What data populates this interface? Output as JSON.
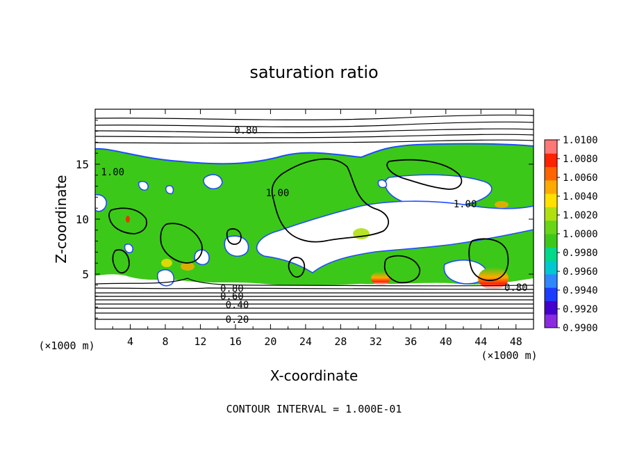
{
  "chart_data": {
    "type": "heatmap",
    "title": "saturation ratio",
    "xlabel": "X-coordinate",
    "ylabel": "Z-coordinate",
    "x_unit": "(×1000 m)",
    "z_unit": "(×1000 m)",
    "xlim": [
      0,
      50
    ],
    "ylim": [
      0,
      20
    ],
    "x_ticks": [
      4,
      8,
      12,
      16,
      20,
      24,
      28,
      32,
      36,
      40,
      44,
      48
    ],
    "y_ticks": [
      5,
      10,
      15
    ],
    "footer": "CONTOUR INTERVAL = 1.000E-01",
    "contour_labels": [
      {
        "text": "0.80",
        "x": 17.2,
        "z": 18.1
      },
      {
        "text": "1.00",
        "x": 2.0,
        "z": 14.3
      },
      {
        "text": "1.00",
        "x": 20.8,
        "z": 12.4
      },
      {
        "text": "1.00",
        "x": 42.2,
        "z": 11.4
      },
      {
        "text": "0.80",
        "x": 15.6,
        "z": 3.7
      },
      {
        "text": "0.60",
        "x": 15.6,
        "z": 3.0
      },
      {
        "text": "0.40",
        "x": 16.2,
        "z": 2.2
      },
      {
        "text": "0.20",
        "x": 16.2,
        "z": 0.9
      },
      {
        "text": "0.80",
        "x": 48.0,
        "z": 3.8
      }
    ],
    "colorbar": {
      "min": 0.99,
      "max": 1.01,
      "labels": [
        "1.0100",
        "1.0080",
        "1.0060",
        "1.0040",
        "1.0020",
        "1.0000",
        "0.9980",
        "0.9960",
        "0.9940",
        "0.9920",
        "0.9900"
      ],
      "colors": [
        "#8a2be2",
        "#4400cc",
        "#1e3cff",
        "#2f87ff",
        "#00c8d0",
        "#00d88a",
        "#3cc818",
        "#66d616",
        "#b0e010",
        "#ffe000",
        "#ffaa00",
        "#ff6400",
        "#ff2200",
        "#ff7777"
      ]
    },
    "colors": {
      "moist": "#3cc818",
      "dry": "#ffffff",
      "edge": "#1e4cff",
      "peak": "#ff6a00"
    }
  }
}
